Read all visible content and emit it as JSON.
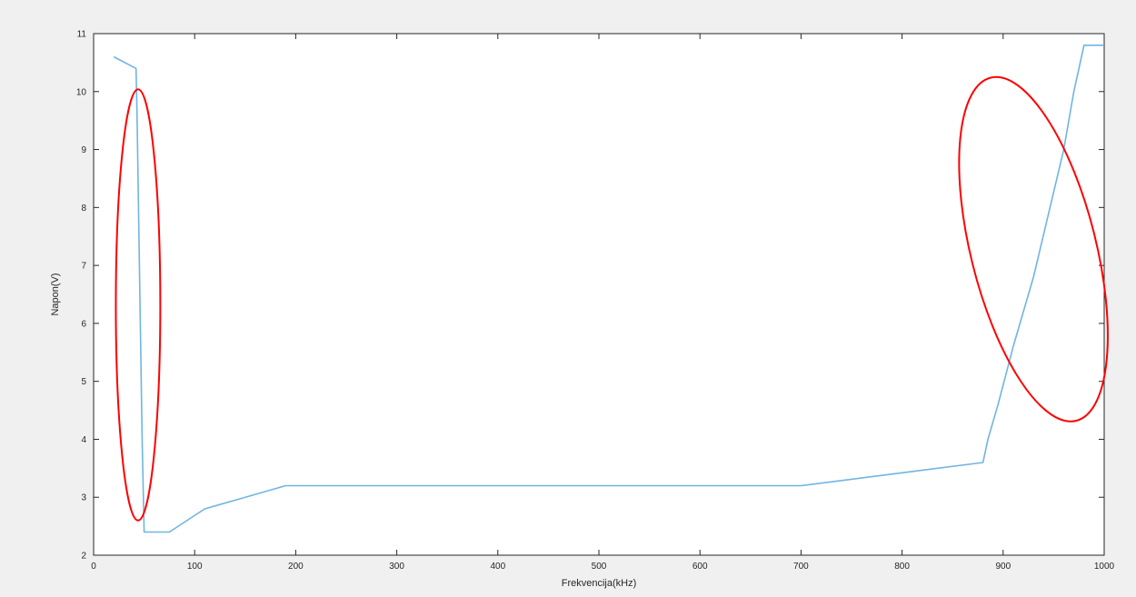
{
  "chart_data": {
    "type": "line",
    "title": "",
    "xlabel": "Frekvencija(kHz)",
    "ylabel": "Napon(V)",
    "xlim": [
      0,
      1000
    ],
    "ylim": [
      2,
      11
    ],
    "xticks": [
      0,
      100,
      200,
      300,
      400,
      500,
      600,
      700,
      800,
      900,
      1000
    ],
    "yticks": [
      2,
      3,
      4,
      5,
      6,
      7,
      8,
      9,
      10,
      11
    ],
    "grid": false,
    "series": [
      {
        "color": "#6fb5e2",
        "x": [
          20,
          42,
          43,
          48,
          50,
          75,
          110,
          190,
          700,
          880,
          885,
          895,
          910,
          930,
          960,
          970,
          980,
          1000
        ],
        "y": [
          10.6,
          10.4,
          9.6,
          4.0,
          2.4,
          2.4,
          2.8,
          3.2,
          3.2,
          3.6,
          4.0,
          4.6,
          5.6,
          6.8,
          9.0,
          10.0,
          10.8,
          10.8
        ]
      }
    ],
    "annotations": [
      {
        "shape": "ellipse",
        "color": "#ff0000",
        "cx": 44,
        "cy": 6.32,
        "rx": 22,
        "ry": 3.72,
        "rotation_deg": 0
      },
      {
        "shape": "ellipse",
        "color": "#ff0000",
        "cx": 930,
        "cy": 7.28,
        "rx": 62,
        "ry": 3.05,
        "rotation_deg": -14
      }
    ]
  }
}
